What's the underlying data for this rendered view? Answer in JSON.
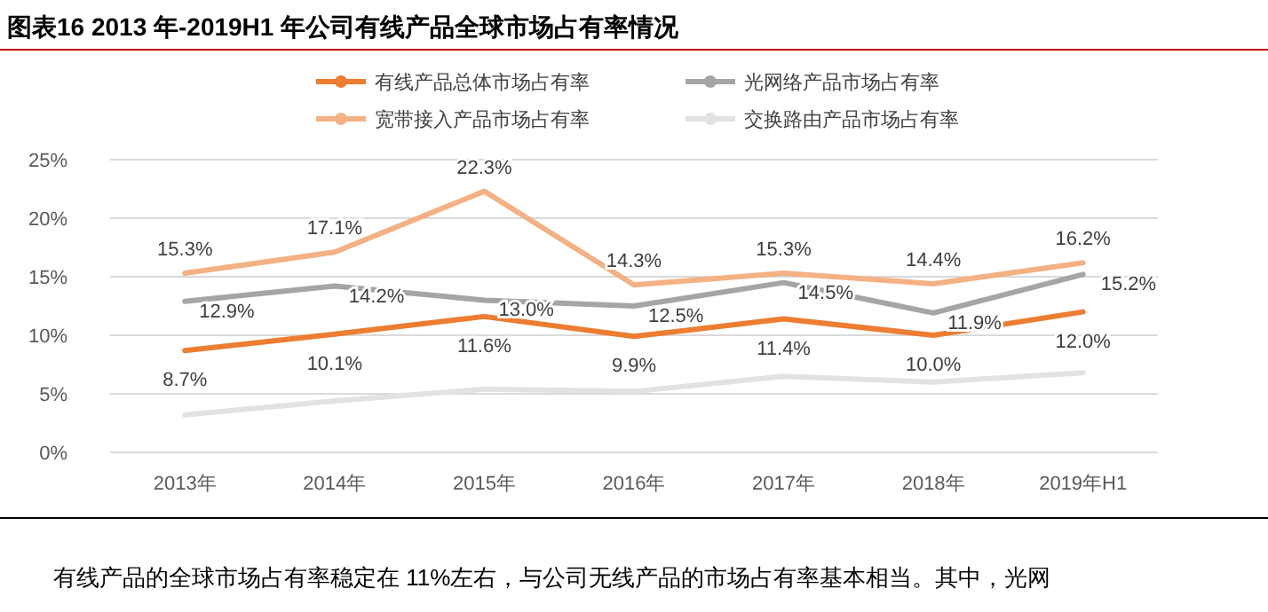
{
  "chart_data": {
    "type": "line",
    "title": "图表16    2013 年-2019H1 年公司有线产品全球市场占有率情况",
    "categories": [
      "2013年",
      "2014年",
      "2015年",
      "2016年",
      "2017年",
      "2018年",
      "2019年H1"
    ],
    "series": [
      {
        "name": "有线产品总体市场占有率",
        "color": "#ed7d31",
        "values": [
          8.7,
          10.1,
          11.6,
          9.9,
          11.4,
          10.0,
          12.0
        ],
        "value_labels": [
          "8.7%",
          "10.1%",
          "11.6%",
          "9.9%",
          "11.4%",
          "10.0%",
          "12.0%"
        ]
      },
      {
        "name": "光网络产品市场占有率",
        "color": "#a5a5a5",
        "values": [
          12.9,
          14.2,
          13.0,
          12.5,
          14.5,
          11.9,
          15.2
        ],
        "value_labels": [
          "12.9%",
          "14.2%",
          "13.0%",
          "12.5%",
          "14.5%",
          "11.9%",
          "15.2%"
        ]
      },
      {
        "name": "宽带接入产品市场占有率",
        "color": "#f4b183",
        "values": [
          15.3,
          17.1,
          22.3,
          14.3,
          15.3,
          14.4,
          16.2
        ],
        "value_labels": [
          "15.3%",
          "17.1%",
          "22.3%",
          "14.3%",
          "15.3%",
          "14.4%",
          "16.2%"
        ]
      },
      {
        "name": "交换路由产品市场占有率",
        "color": "#e2e2e2",
        "values": [
          3.2,
          4.4,
          5.4,
          5.2,
          6.5,
          6.0,
          6.8
        ]
      }
    ],
    "ylim": [
      0,
      25
    ],
    "yticks": [
      {
        "value": 0,
        "label": "0%"
      },
      {
        "value": 5,
        "label": "5%"
      },
      {
        "value": 10,
        "label": "10%"
      },
      {
        "value": 15,
        "label": "15%"
      },
      {
        "value": 20,
        "label": "20%"
      },
      {
        "value": 25,
        "label": "25%"
      }
    ],
    "grid": "y",
    "legend": "top",
    "annotations": [
      "有线产品的全球市场占有率稳定在 11%左右，与公司无线产品的市场占有率基本相当。其中，光网"
    ]
  }
}
